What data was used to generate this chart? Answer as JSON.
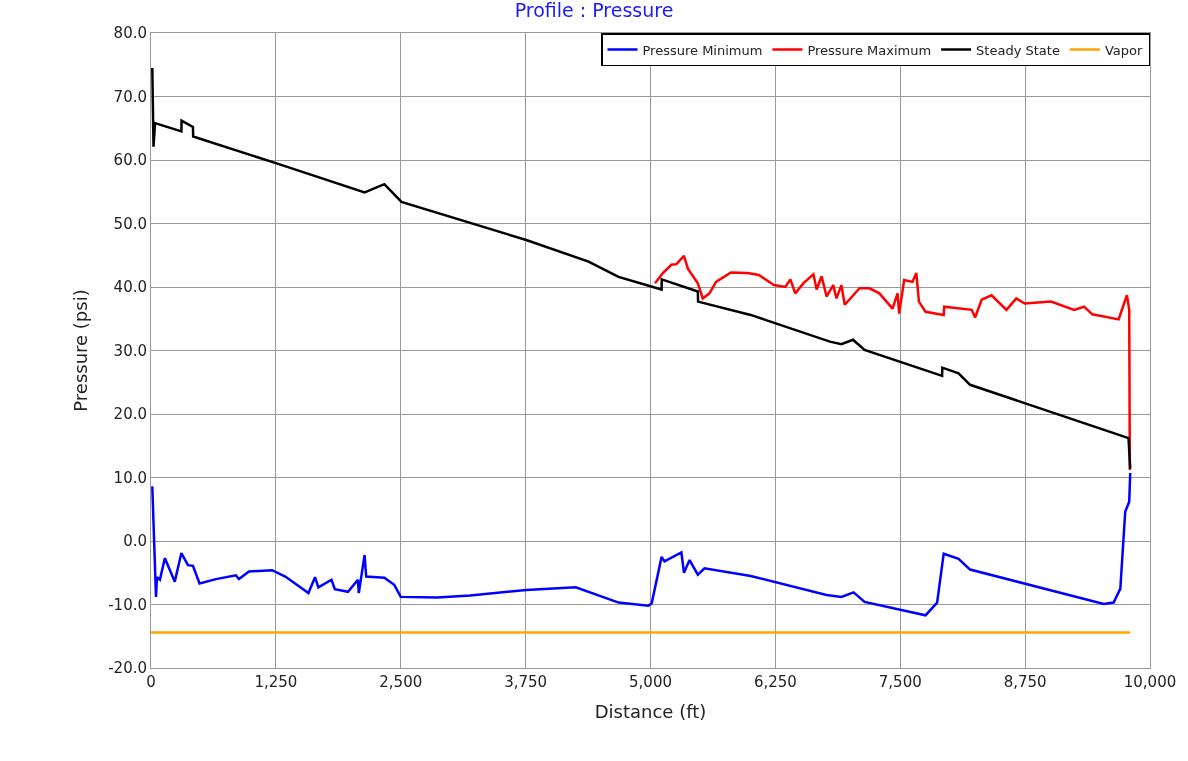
{
  "chart_data": {
    "type": "line",
    "title": "Profile : Pressure",
    "xlabel": "Distance (ft)",
    "ylabel": "Pressure (psi)",
    "xlim": [
      0,
      10000
    ],
    "ylim": [
      -20,
      80
    ],
    "xticks": [
      0,
      {
        "value": 1250,
        "label": "1,250"
      },
      {
        "value": 2500,
        "label": "2,500"
      },
      {
        "value": 3750,
        "label": "3,750"
      },
      {
        "value": 5000,
        "label": "5,000"
      },
      {
        "value": 6250,
        "label": "6,250"
      },
      {
        "value": 7500,
        "label": "7,500"
      },
      {
        "value": 8750,
        "label": "8,750"
      },
      {
        "value": 10000,
        "label": "10,000"
      }
    ],
    "yticks": [
      {
        "value": -20,
        "label": "-20.0"
      },
      {
        "value": -10,
        "label": "-10.0"
      },
      {
        "value": 0,
        "label": "0.0"
      },
      {
        "value": 10,
        "label": "10.0"
      },
      {
        "value": 20,
        "label": "20.0"
      },
      {
        "value": 30,
        "label": "30.0"
      },
      {
        "value": 40,
        "label": "40.0"
      },
      {
        "value": 50,
        "label": "50.0"
      },
      {
        "value": 60,
        "label": "60.0"
      },
      {
        "value": 70,
        "label": "70.0"
      },
      {
        "value": 80,
        "label": "80.0"
      }
    ],
    "grid": true,
    "legend": "top right",
    "marker": "none",
    "line_style": "solid",
    "series": [
      {
        "name": "Pressure Minimum",
        "color": "#0000ff",
        "x": [
          13,
          50,
          60,
          89,
          139,
          238,
          304,
          370,
          420,
          486,
          651,
          849,
          880,
          981,
          1212,
          1344,
          1576,
          1642,
          1675,
          1807,
          1840,
          1972,
          2071,
          2080,
          2138,
          2154,
          2336,
          2435,
          2500,
          2865,
          3196,
          3756,
          4252,
          4681,
          4978,
          5012,
          5111,
          5140,
          5309,
          5335,
          5391,
          5474,
          5540,
          6003,
          6762,
          6911,
          7033,
          7143,
          7753,
          7869,
          7935,
          8084,
          8199,
          9537,
          9636,
          9703,
          9752,
          9792,
          9802
        ],
        "values": [
          8.6,
          -8.8,
          -5.7,
          -6.1,
          -2.7,
          -6.4,
          -1.9,
          -3.8,
          -3.9,
          -6.7,
          -6.0,
          -5.4,
          -6.0,
          -4.8,
          -4.6,
          -5.6,
          -8.2,
          -5.7,
          -7.3,
          -6.1,
          -7.6,
          -8.0,
          -6.1,
          -8.2,
          -2.2,
          -5.6,
          -5.8,
          -6.9,
          -8.8,
          -8.9,
          -8.6,
          -7.7,
          -7.3,
          -9.7,
          -10.2,
          -9.8,
          -2.5,
          -3.2,
          -1.8,
          -5.0,
          -3.0,
          -5.3,
          -4.3,
          -5.5,
          -8.5,
          -8.8,
          -8.1,
          -9.6,
          -11.7,
          -9.7,
          -2.0,
          -2.8,
          -4.5,
          -9.9,
          -9.7,
          -7.5,
          4.6,
          6.2,
          10.7
        ]
      },
      {
        "name": "Pressure Maximum",
        "color": "#ff0000",
        "x": [
          5045,
          5124,
          5209,
          5260,
          5335,
          5374,
          5474,
          5523,
          5590,
          5656,
          5804,
          5970,
          6085,
          6234,
          6350,
          6400,
          6449,
          6531,
          6631,
          6663,
          6713,
          6762,
          6829,
          6862,
          6911,
          6944,
          7093,
          7192,
          7291,
          7423,
          7473,
          7489,
          7539,
          7622,
          7661,
          7687,
          7753,
          7935,
          7940,
          8216,
          8249,
          8315,
          8414,
          8563,
          8662,
          8745,
          9009,
          9241,
          9340,
          9422,
          9686,
          9769,
          9792,
          9798
        ],
        "values": [
          40.6,
          42.2,
          43.5,
          43.6,
          44.9,
          42.9,
          40.6,
          38.2,
          39.0,
          40.8,
          42.3,
          42.2,
          41.9,
          40.3,
          40.0,
          41.2,
          39.0,
          40.6,
          42.0,
          39.6,
          41.7,
          38.5,
          40.3,
          38.2,
          40.3,
          37.2,
          39.8,
          39.8,
          39.0,
          36.6,
          39.0,
          35.8,
          41.1,
          40.8,
          42.2,
          37.7,
          36.1,
          35.6,
          36.9,
          36.4,
          35.2,
          38.0,
          38.7,
          36.4,
          38.2,
          37.4,
          37.7,
          36.4,
          36.9,
          35.7,
          34.9,
          38.7,
          36.4,
          11.2
        ]
      },
      {
        "name": "Steady State",
        "color": "#000000",
        "x": [
          13,
          25,
          40,
          304,
          306,
          420,
          422,
          1250,
          2138,
          2336,
          2507,
          3756,
          4380,
          4680,
          5025,
          5111,
          5113,
          5474,
          5476,
          6003,
          6796,
          6911,
          7027,
          7143,
          7919,
          7921,
          8084,
          8199,
          9785,
          9802
        ],
        "values": [
          74.5,
          62.1,
          65.8,
          64.5,
          66.2,
          65.2,
          63.7,
          59.5,
          54.9,
          56.2,
          53.4,
          47.4,
          44.0,
          41.6,
          40.0,
          39.6,
          41.2,
          39.3,
          37.7,
          35.6,
          31.4,
          31.0,
          31.7,
          30.1,
          26.0,
          27.3,
          26.4,
          24.6,
          16.2,
          11.4
        ]
      },
      {
        "name": "Vapor",
        "color": "#ffa500",
        "x": [
          0,
          9802
        ],
        "values": [
          -14.4,
          -14.4
        ]
      }
    ]
  }
}
